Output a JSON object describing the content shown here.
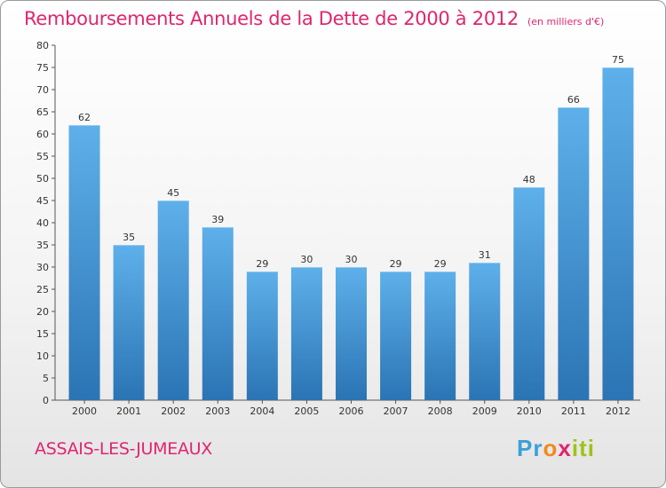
{
  "title": "Remboursements Annuels de la Dette de 2000 à 2012",
  "unit_label": "(en milliers d'€)",
  "commune": "ASSAIS-LES-JUMEAUX",
  "logo": {
    "letters": [
      "P",
      "r",
      "o",
      "x",
      "i",
      "t",
      "i"
    ],
    "colors": [
      "#3aa0d8",
      "#3aa0d8",
      "#f08a1c",
      "#e0256e",
      "#9cc31a",
      "#9cc31a",
      "#9cc31a"
    ]
  },
  "colors": {
    "bar": "#4f9fdc",
    "bar_dark": "#2a6fae",
    "accent": "#e0256e"
  },
  "chart_data": {
    "type": "bar",
    "title": "Remboursements Annuels de la Dette de 2000 à 2012",
    "categories": [
      "2000",
      "2001",
      "2002",
      "2003",
      "2004",
      "2005",
      "2006",
      "2007",
      "2008",
      "2009",
      "2010",
      "2011",
      "2012"
    ],
    "values": [
      62,
      35,
      45,
      39,
      29,
      30,
      30,
      29,
      29,
      31,
      48,
      66,
      75
    ],
    "ylim": [
      0,
      80
    ],
    "yticks": [
      0,
      5,
      10,
      15,
      20,
      25,
      30,
      35,
      40,
      45,
      50,
      55,
      60,
      65,
      70,
      75,
      80
    ],
    "xlabel": "",
    "ylabel": "",
    "grid": false,
    "data_labels": true
  }
}
